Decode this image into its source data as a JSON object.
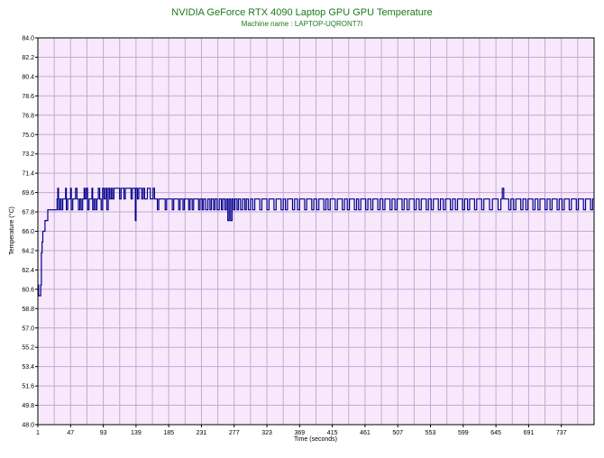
{
  "colors": {
    "title": "#1a7a1a",
    "plot_bg": "#f7e9fb",
    "grid": "#c9a6d6",
    "line": "#00008b",
    "axis_text": "#000000"
  },
  "chart_data": {
    "type": "line",
    "title": "NVIDIA GeForce RTX 4090 Laptop GPU GPU Temperature",
    "subtitle": "Machine name : LAPTOP-UQRONT7I",
    "xlabel": "Time (seconds)",
    "ylabel": "Temperature (°C)",
    "xlim": [
      1,
      783
    ],
    "ylim": [
      48.0,
      84.0
    ],
    "grid": true,
    "x_ticks": [
      "1",
      "47",
      "93",
      "139",
      "185",
      "231",
      "277",
      "323",
      "369",
      "415",
      "461",
      "507",
      "553",
      "599",
      "645",
      "691",
      "737"
    ],
    "y_ticks": [
      "48.0",
      "49.8",
      "51.6",
      "53.4",
      "55.2",
      "57.0",
      "58.8",
      "60.6",
      "62.4",
      "64.2",
      "66.0",
      "67.8",
      "69.6",
      "71.4",
      "73.2",
      "75.0",
      "76.8",
      "78.6",
      "80.4",
      "82.2",
      "84.0"
    ],
    "series": [
      {
        "values": [
          [
            1,
            61
          ],
          [
            2,
            60
          ],
          [
            4,
            60
          ],
          [
            5,
            61
          ],
          [
            6,
            64
          ],
          [
            7,
            65
          ],
          [
            8,
            66
          ],
          [
            10,
            66
          ],
          [
            11,
            67
          ],
          [
            14,
            67
          ],
          [
            15,
            68
          ],
          [
            18,
            68
          ],
          [
            20,
            68
          ],
          [
            22,
            68
          ],
          [
            24,
            68
          ],
          [
            26,
            68
          ],
          [
            28,
            69
          ],
          [
            29,
            70
          ],
          [
            30,
            68
          ],
          [
            32,
            69
          ],
          [
            34,
            68
          ],
          [
            36,
            69
          ],
          [
            38,
            69
          ],
          [
            40,
            70
          ],
          [
            41,
            68
          ],
          [
            43,
            69
          ],
          [
            45,
            69
          ],
          [
            47,
            70
          ],
          [
            48,
            68
          ],
          [
            50,
            69
          ],
          [
            52,
            69
          ],
          [
            54,
            70
          ],
          [
            56,
            69
          ],
          [
            58,
            68
          ],
          [
            60,
            69
          ],
          [
            62,
            68
          ],
          [
            64,
            69
          ],
          [
            66,
            70
          ],
          [
            67,
            69
          ],
          [
            69,
            70
          ],
          [
            71,
            68
          ],
          [
            73,
            69
          ],
          [
            75,
            69
          ],
          [
            77,
            70
          ],
          [
            78,
            68
          ],
          [
            80,
            69
          ],
          [
            82,
            68
          ],
          [
            84,
            69
          ],
          [
            86,
            70
          ],
          [
            88,
            69
          ],
          [
            90,
            68
          ],
          [
            92,
            70
          ],
          [
            94,
            69
          ],
          [
            96,
            70
          ],
          [
            98,
            68
          ],
          [
            100,
            70
          ],
          [
            102,
            69
          ],
          [
            104,
            70
          ],
          [
            106,
            69
          ],
          [
            108,
            70
          ],
          [
            110,
            70
          ],
          [
            112,
            70
          ],
          [
            114,
            70
          ],
          [
            116,
            69
          ],
          [
            118,
            70
          ],
          [
            120,
            70
          ],
          [
            122,
            69
          ],
          [
            124,
            70
          ],
          [
            126,
            70
          ],
          [
            128,
            70
          ],
          [
            130,
            70
          ],
          [
            132,
            69
          ],
          [
            134,
            70
          ],
          [
            136,
            70
          ],
          [
            138,
            67
          ],
          [
            139,
            70
          ],
          [
            141,
            69
          ],
          [
            143,
            70
          ],
          [
            145,
            70
          ],
          [
            147,
            69
          ],
          [
            149,
            70
          ],
          [
            151,
            69
          ],
          [
            153,
            69
          ],
          [
            155,
            70
          ],
          [
            157,
            70
          ],
          [
            159,
            69
          ],
          [
            161,
            69
          ],
          [
            163,
            70
          ],
          [
            165,
            69
          ],
          [
            167,
            69
          ],
          [
            169,
            68
          ],
          [
            171,
            69
          ],
          [
            175,
            69
          ],
          [
            180,
            68
          ],
          [
            182,
            69
          ],
          [
            187,
            69
          ],
          [
            190,
            68
          ],
          [
            192,
            69
          ],
          [
            196,
            69
          ],
          [
            199,
            68
          ],
          [
            201,
            69
          ],
          [
            205,
            68
          ],
          [
            207,
            69
          ],
          [
            210,
            69
          ],
          [
            213,
            68
          ],
          [
            215,
            69
          ],
          [
            218,
            68
          ],
          [
            220,
            69
          ],
          [
            224,
            69
          ],
          [
            227,
            68
          ],
          [
            229,
            69
          ],
          [
            232,
            68
          ],
          [
            234,
            69
          ],
          [
            237,
            68
          ],
          [
            240,
            69
          ],
          [
            243,
            68
          ],
          [
            245,
            69
          ],
          [
            248,
            68
          ],
          [
            250,
            69
          ],
          [
            253,
            68
          ],
          [
            256,
            69
          ],
          [
            259,
            68
          ],
          [
            261,
            69
          ],
          [
            264,
            68
          ],
          [
            266,
            69
          ],
          [
            268,
            67
          ],
          [
            270,
            69
          ],
          [
            272,
            67
          ],
          [
            274,
            69
          ],
          [
            276,
            68
          ],
          [
            278,
            69
          ],
          [
            281,
            68
          ],
          [
            283,
            69
          ],
          [
            286,
            68
          ],
          [
            289,
            69
          ],
          [
            292,
            68
          ],
          [
            294,
            69
          ],
          [
            297,
            68
          ],
          [
            300,
            69
          ],
          [
            303,
            68
          ],
          [
            306,
            69
          ],
          [
            310,
            69
          ],
          [
            313,
            68
          ],
          [
            316,
            69
          ],
          [
            320,
            69
          ],
          [
            323,
            68
          ],
          [
            326,
            69
          ],
          [
            330,
            69
          ],
          [
            333,
            68
          ],
          [
            336,
            69
          ],
          [
            340,
            69
          ],
          [
            343,
            68
          ],
          [
            346,
            69
          ],
          [
            349,
            68
          ],
          [
            352,
            69
          ],
          [
            356,
            69
          ],
          [
            359,
            68
          ],
          [
            362,
            69
          ],
          [
            366,
            68
          ],
          [
            369,
            69
          ],
          [
            373,
            69
          ],
          [
            376,
            68
          ],
          [
            379,
            69
          ],
          [
            383,
            69
          ],
          [
            386,
            68
          ],
          [
            389,
            69
          ],
          [
            393,
            68
          ],
          [
            396,
            69
          ],
          [
            400,
            69
          ],
          [
            403,
            68
          ],
          [
            406,
            69
          ],
          [
            409,
            68
          ],
          [
            412,
            69
          ],
          [
            416,
            69
          ],
          [
            419,
            68
          ],
          [
            422,
            69
          ],
          [
            426,
            69
          ],
          [
            429,
            68
          ],
          [
            432,
            69
          ],
          [
            436,
            68
          ],
          [
            439,
            69
          ],
          [
            443,
            69
          ],
          [
            446,
            68
          ],
          [
            449,
            69
          ],
          [
            452,
            68
          ],
          [
            455,
            69
          ],
          [
            459,
            69
          ],
          [
            462,
            68
          ],
          [
            465,
            69
          ],
          [
            469,
            68
          ],
          [
            472,
            69
          ],
          [
            476,
            69
          ],
          [
            479,
            68
          ],
          [
            482,
            69
          ],
          [
            486,
            68
          ],
          [
            489,
            69
          ],
          [
            493,
            69
          ],
          [
            496,
            68
          ],
          [
            499,
            69
          ],
          [
            503,
            68
          ],
          [
            506,
            69
          ],
          [
            510,
            69
          ],
          [
            513,
            68
          ],
          [
            516,
            69
          ],
          [
            520,
            68
          ],
          [
            523,
            69
          ],
          [
            527,
            69
          ],
          [
            530,
            68
          ],
          [
            533,
            69
          ],
          [
            537,
            68
          ],
          [
            540,
            69
          ],
          [
            544,
            69
          ],
          [
            547,
            68
          ],
          [
            550,
            69
          ],
          [
            554,
            68
          ],
          [
            557,
            69
          ],
          [
            561,
            69
          ],
          [
            564,
            68
          ],
          [
            567,
            69
          ],
          [
            571,
            68
          ],
          [
            574,
            69
          ],
          [
            578,
            69
          ],
          [
            581,
            68
          ],
          [
            584,
            69
          ],
          [
            588,
            68
          ],
          [
            591,
            69
          ],
          [
            595,
            69
          ],
          [
            598,
            68
          ],
          [
            601,
            69
          ],
          [
            605,
            68
          ],
          [
            608,
            69
          ],
          [
            612,
            69
          ],
          [
            615,
            68
          ],
          [
            618,
            69
          ],
          [
            622,
            69
          ],
          [
            625,
            68
          ],
          [
            628,
            69
          ],
          [
            632,
            69
          ],
          [
            636,
            68
          ],
          [
            640,
            69
          ],
          [
            644,
            69
          ],
          [
            648,
            68
          ],
          [
            652,
            69
          ],
          [
            654,
            70
          ],
          [
            656,
            69
          ],
          [
            660,
            69
          ],
          [
            663,
            68
          ],
          [
            666,
            69
          ],
          [
            670,
            68
          ],
          [
            673,
            69
          ],
          [
            677,
            69
          ],
          [
            680,
            68
          ],
          [
            683,
            69
          ],
          [
            687,
            68
          ],
          [
            690,
            69
          ],
          [
            694,
            69
          ],
          [
            697,
            68
          ],
          [
            700,
            69
          ],
          [
            704,
            68
          ],
          [
            707,
            69
          ],
          [
            711,
            69
          ],
          [
            714,
            68
          ],
          [
            717,
            69
          ],
          [
            721,
            68
          ],
          [
            724,
            69
          ],
          [
            728,
            69
          ],
          [
            731,
            68
          ],
          [
            734,
            69
          ],
          [
            738,
            68
          ],
          [
            741,
            69
          ],
          [
            745,
            69
          ],
          [
            748,
            68
          ],
          [
            751,
            69
          ],
          [
            755,
            69
          ],
          [
            758,
            68
          ],
          [
            761,
            69
          ],
          [
            765,
            69
          ],
          [
            768,
            68
          ],
          [
            771,
            69
          ],
          [
            775,
            69
          ],
          [
            778,
            68
          ],
          [
            781,
            69
          ],
          [
            783,
            69
          ]
        ]
      }
    ]
  }
}
